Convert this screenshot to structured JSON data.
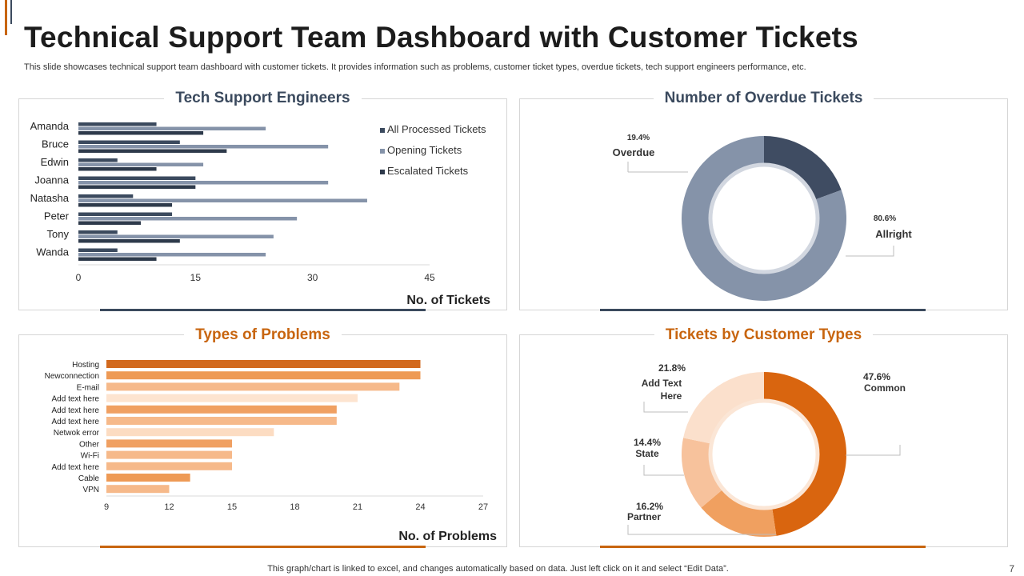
{
  "header": {
    "title": "Technical Support Team Dashboard with Customer Tickets",
    "subtitle": "This slide showcases technical support team dashboard with customer tickets. It provides information such as problems, customer ticket types, overdue tickets, tech support engineers performance, etc."
  },
  "footer": {
    "note": "This graph/chart is linked to excel, and changes automatically based on data. Just left click on it and select “Edit Data”.",
    "page_number": "7"
  },
  "colors": {
    "navy": "#3b4a5e",
    "slate": "#8593a9",
    "dark": "#2e3a4b",
    "orange": "#c8650f"
  },
  "chart_data": [
    {
      "type": "bar",
      "orientation": "horizontal",
      "title": "Tech Support Engineers",
      "xlabel": "No. of Tickets",
      "categories": [
        "Amanda",
        "Bruce",
        "Edwin",
        "Joanna",
        "Natasha",
        "Peter",
        "Tony",
        "Wanda"
      ],
      "series": [
        {
          "name": "All Processed Tickets",
          "color": "#3b4a5e",
          "values": [
            10,
            13,
            5,
            15,
            7,
            12,
            5,
            5
          ]
        },
        {
          "name": "Opening Tickets",
          "color": "#8593a9",
          "values": [
            24,
            32,
            16,
            32,
            37,
            28,
            25,
            24
          ]
        },
        {
          "name": "Escalated Tickets",
          "color": "#2e3a4b",
          "values": [
            16,
            19,
            10,
            15,
            12,
            8,
            13,
            10
          ]
        }
      ],
      "xlim": [
        0,
        45
      ],
      "xticks": [
        "0",
        "15",
        "30",
        "45"
      ],
      "legend": "right"
    },
    {
      "type": "pie",
      "variant": "donut",
      "title": "Number of Overdue Tickets",
      "slices": [
        {
          "label": "Overdue",
          "value": 19.4,
          "display": "19.4%",
          "color": "#3f4c62"
        },
        {
          "label": "Allright",
          "value": 80.6,
          "display": "80.6%",
          "color": "#8593a9"
        }
      ]
    },
    {
      "type": "bar",
      "orientation": "horizontal",
      "title": "Types of Problems",
      "xlabel": "No. of Problems",
      "categories": [
        "Hosting",
        "Newconnection",
        "E-mail",
        "Add text here",
        "Add text here",
        "Add text here",
        "Netwok error",
        "Other",
        "Wi-Fi",
        "Add text here",
        "Cable",
        "VPN"
      ],
      "values": [
        24,
        24,
        23,
        21,
        20,
        20,
        17,
        15,
        15,
        15,
        13,
        12
      ],
      "colors": [
        "#d2691e",
        "#ee9a55",
        "#f6b98a",
        "#fde4d0",
        "#f0a062",
        "#f6b98a",
        "#fcdcc2",
        "#f0a062",
        "#f6b98a",
        "#f6b98a",
        "#ee9a55",
        "#f6b98a"
      ],
      "xlim": [
        9,
        27
      ],
      "xticks": [
        "9",
        "12",
        "15",
        "18",
        "21",
        "24",
        "27"
      ]
    },
    {
      "type": "pie",
      "variant": "donut",
      "title": "Tickets by Customer Types",
      "slices": [
        {
          "label": "Common",
          "value": 47.6,
          "display": "47.6%",
          "color": "#d9650f"
        },
        {
          "label": "Partner",
          "value": 16.2,
          "display": "16.2%",
          "color": "#f0a060"
        },
        {
          "label": "State",
          "value": 14.4,
          "display": "14.4%",
          "color": "#f7c29c"
        },
        {
          "label": "Add Text Here",
          "value": 21.8,
          "display": "21.8%",
          "color": "#fbe0cc"
        }
      ]
    }
  ]
}
